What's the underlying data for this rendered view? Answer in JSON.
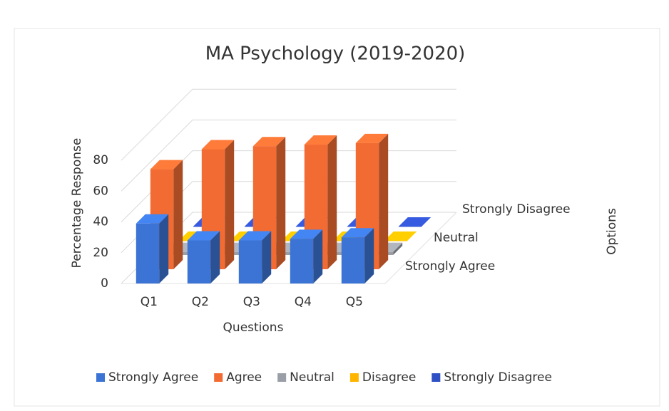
{
  "chart_data": {
    "type": "bar3d",
    "title": "MA Psychology (2019-2020)",
    "y_label": "Percentage Response",
    "x_label": "Questions",
    "z_label": "Options",
    "categories": [
      "Q1",
      "Q2",
      "Q3",
      "Q4",
      "Q5"
    ],
    "zcategories": [
      "Strongly Agree",
      null,
      "Neutral",
      null,
      "Strongly Disagree"
    ],
    "series": [
      {
        "name": "Strongly Agree",
        "color": "#3b74d4",
        "values": [
          39,
          28,
          28,
          29,
          30
        ]
      },
      {
        "name": "Agree",
        "color": "#f26b32",
        "values": [
          65,
          78,
          80,
          81,
          82
        ]
      },
      {
        "name": "Neutral",
        "color": "#9a9ea6",
        "values": [
          2,
          2,
          2,
          2,
          2
        ]
      },
      {
        "name": "Disagree",
        "color": "#ffb400",
        "values": [
          0,
          0,
          0,
          0,
          0
        ]
      },
      {
        "name": "Strongly Disagree",
        "color": "#2f4fc4",
        "values": [
          0,
          0,
          0,
          0,
          0
        ]
      }
    ],
    "ylim": [
      0,
      100
    ],
    "yticks": [
      0,
      20,
      40,
      60,
      80
    ],
    "grid": true
  }
}
